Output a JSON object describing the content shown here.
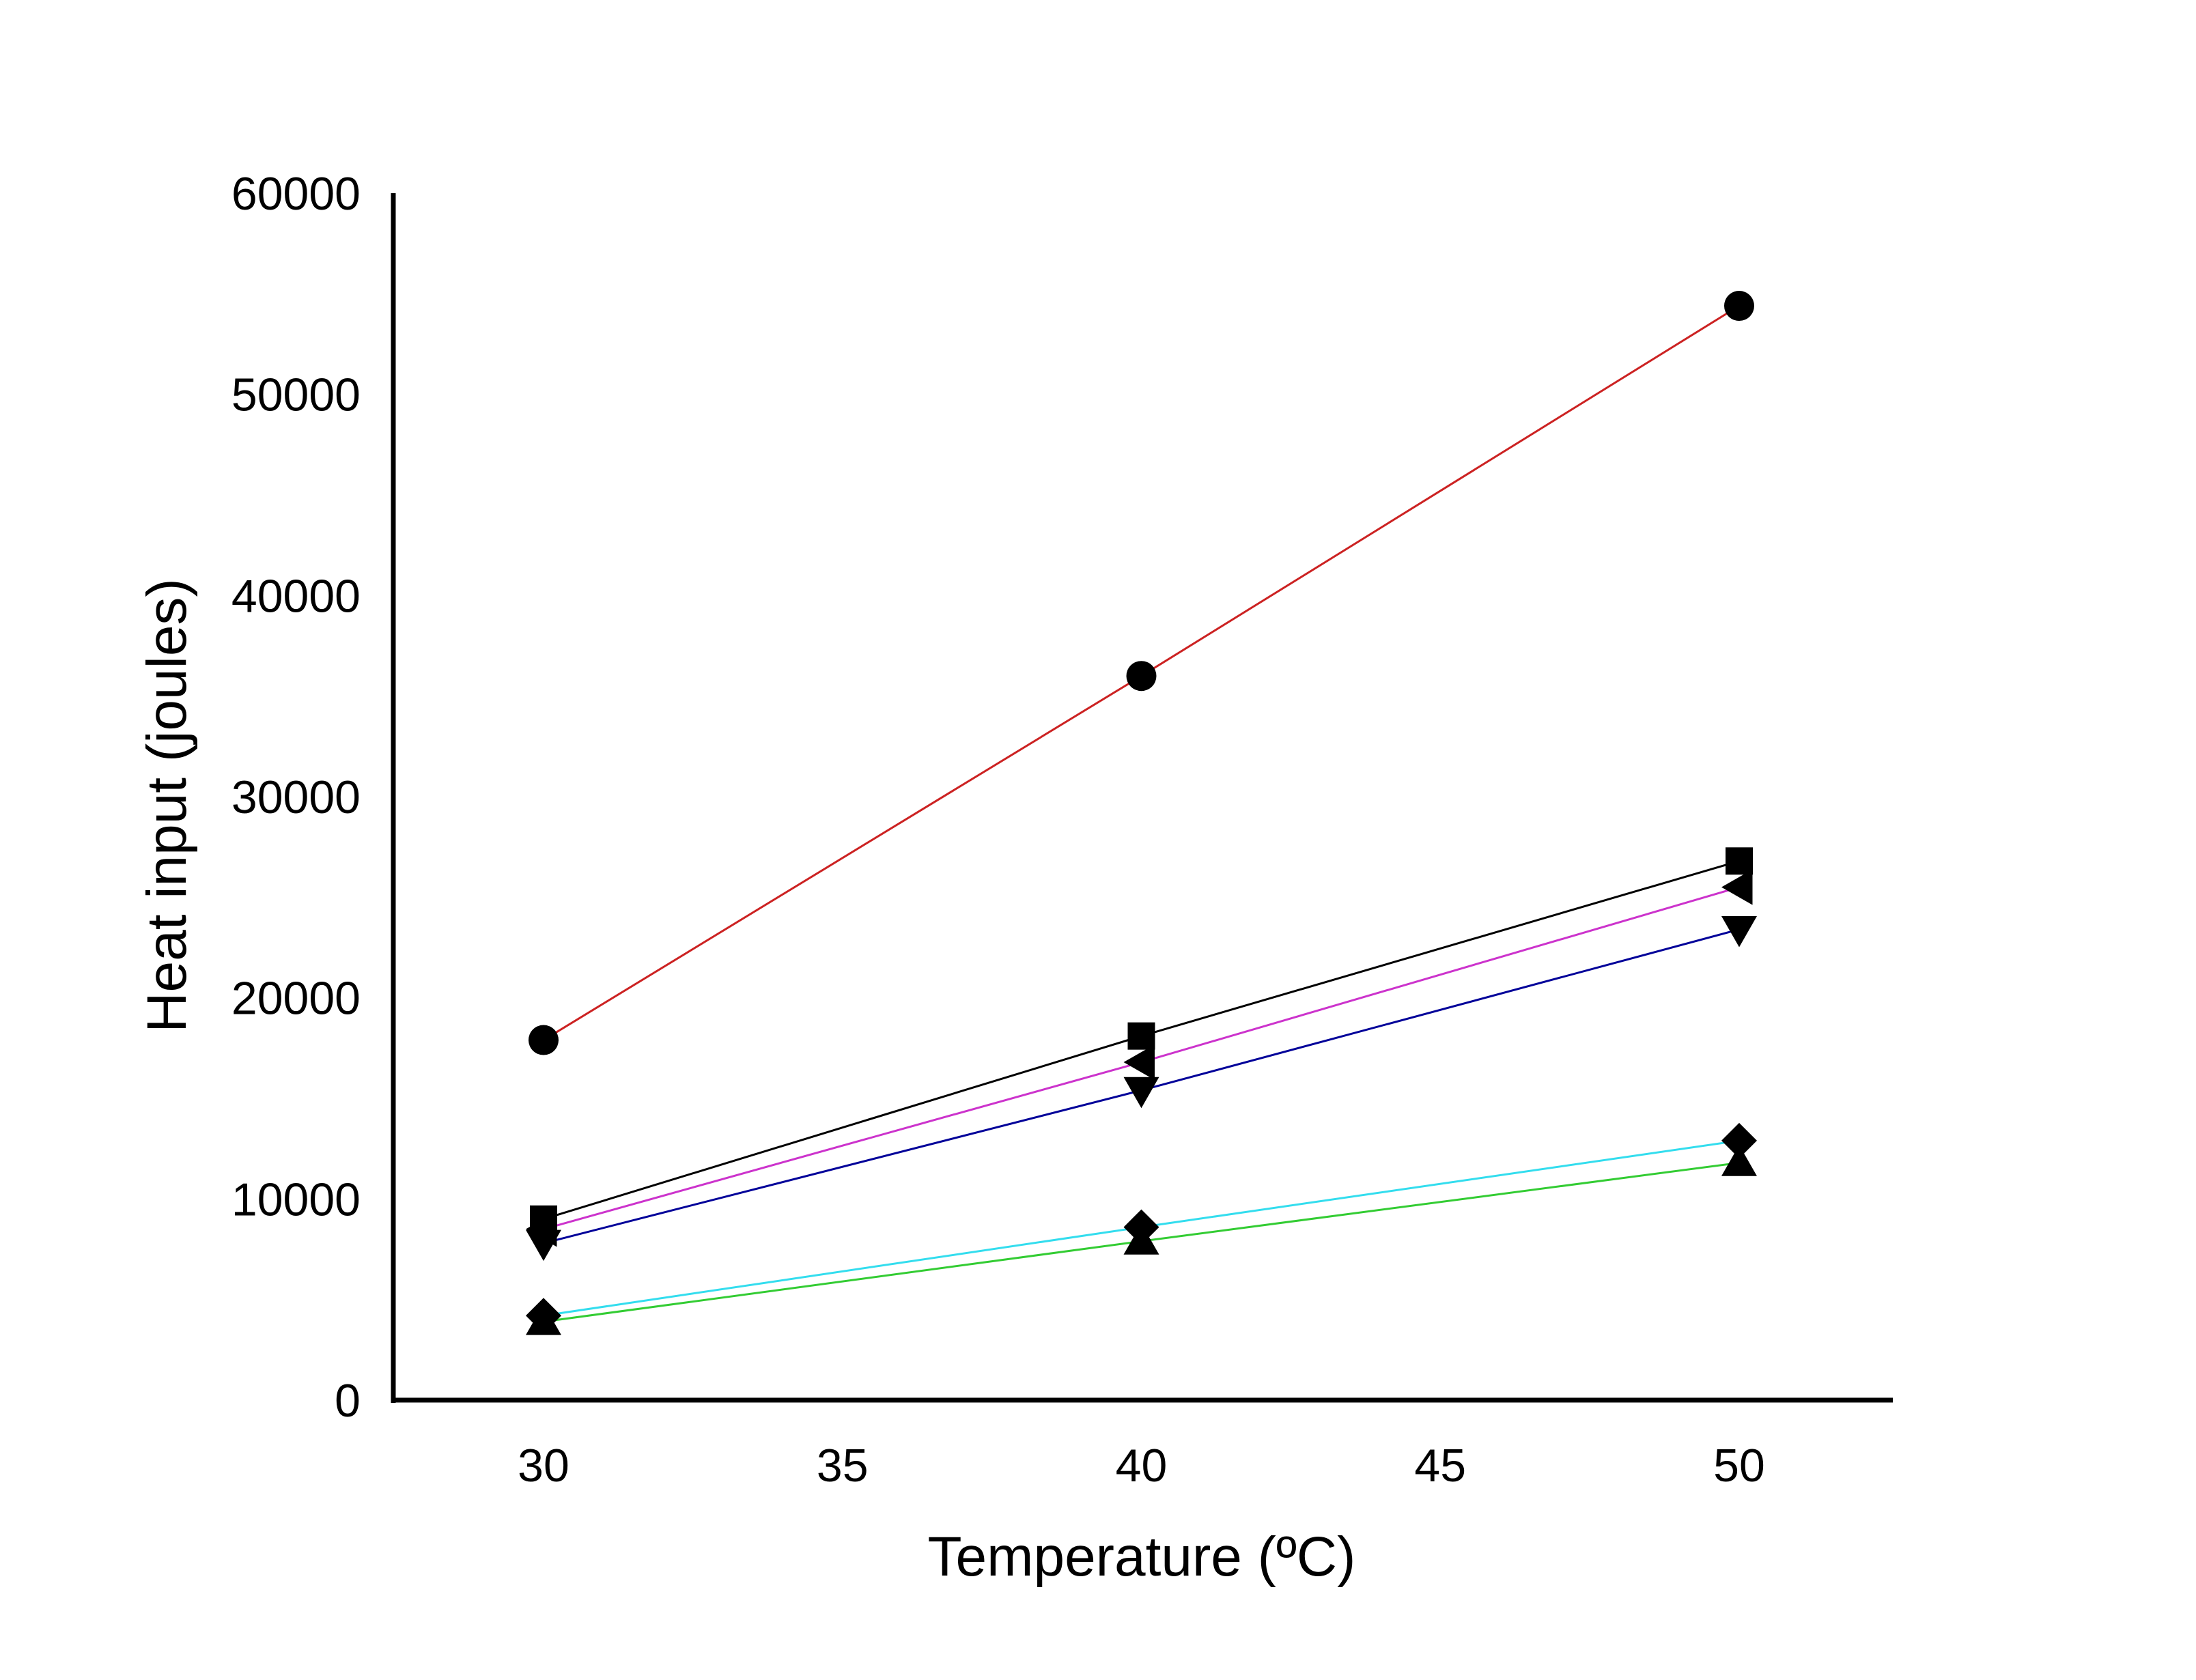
{
  "chart_data": {
    "type": "line",
    "title": "",
    "xlabel": "Temperature (ºC)",
    "ylabel": "Heat input (joules)",
    "xlim": [
      27.5,
      52.5
    ],
    "ylim": [
      0,
      60000
    ],
    "x_ticks": [
      30,
      35,
      40,
      45,
      50
    ],
    "x_tick_labels": [
      "30",
      "35",
      "40",
      "45",
      "50"
    ],
    "y_ticks": [
      0,
      10000,
      20000,
      30000,
      40000,
      50000,
      60000
    ],
    "y_tick_labels": [
      "0",
      "10000",
      "20000",
      "30000",
      "40000",
      "50000",
      "60000"
    ],
    "grid": false,
    "legend": "none",
    "x": [
      30,
      40,
      50
    ],
    "series": [
      {
        "name": "circle",
        "marker": "circle",
        "color": "#cc2222",
        "values": [
          17900,
          36000,
          54400
        ]
      },
      {
        "name": "square",
        "marker": "square",
        "color": "#000000",
        "values": [
          9000,
          18100,
          26800
        ]
      },
      {
        "name": "triangle-left",
        "marker": "triangle-left",
        "color": "#cc33cc",
        "values": [
          8500,
          16800,
          25500
        ]
      },
      {
        "name": "triangle-down",
        "marker": "triangle-down",
        "color": "#000099",
        "values": [
          7800,
          15400,
          23400
        ]
      },
      {
        "name": "diamond",
        "marker": "diamond",
        "color": "#33ddee",
        "values": [
          4200,
          8600,
          12900
        ]
      },
      {
        "name": "triangle-up",
        "marker": "triangle-up",
        "color": "#33cc33",
        "values": [
          3900,
          7900,
          11800
        ]
      }
    ]
  }
}
